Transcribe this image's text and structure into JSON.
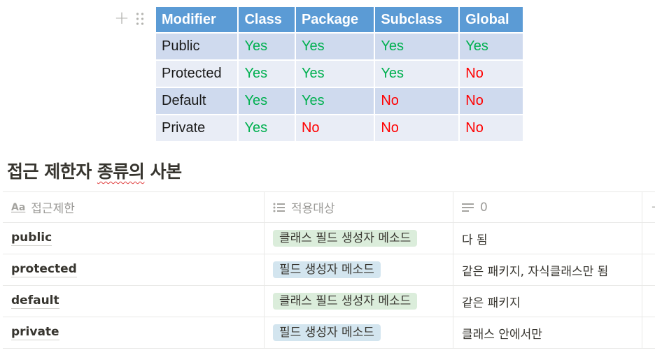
{
  "modifier_table": {
    "headers": [
      "Modifier",
      "Class",
      "Package",
      "Subclass",
      "Global"
    ],
    "rows": [
      [
        "Public",
        "Yes",
        "Yes",
        "Yes",
        "Yes"
      ],
      [
        "Protected",
        "Yes",
        "Yes",
        "Yes",
        "No"
      ],
      [
        "Default",
        "Yes",
        "Yes",
        "No",
        "No"
      ],
      [
        "Private",
        "Yes",
        "No",
        "No",
        "No"
      ]
    ],
    "colors": {
      "header_bg": "#5b9bd5",
      "yes": "#00b050",
      "no": "#ff0000"
    }
  },
  "database": {
    "title": "접근 제한자 종류의 사본",
    "title_underlined": "종류의",
    "columns": [
      {
        "label": "접근제한",
        "icon": "title-property-icon",
        "icon_text": "Aa"
      },
      {
        "label": "적용대상",
        "icon": "multi-select-icon"
      },
      {
        "label": "0",
        "icon": "text-property-icon"
      }
    ],
    "rows": [
      {
        "name": "public",
        "tag": "클래스 필드 생성자 메소드",
        "tag_color": "green",
        "note": "다 됨"
      },
      {
        "name": "protected",
        "tag": "필드 생성자 메소드",
        "tag_color": "blue",
        "note": "같은 패키지, 자식클래스만 됨"
      },
      {
        "name": "default",
        "tag": "클래스 필드 생성자 메소드",
        "tag_color": "green",
        "note": "같은 패키지"
      },
      {
        "name": "private",
        "tag": "필드 생성자 메소드",
        "tag_color": "blue",
        "note": "클래스 안에서만"
      }
    ],
    "add_column_symbol": "+"
  },
  "block_handle": {
    "plus_symbol": "+"
  }
}
